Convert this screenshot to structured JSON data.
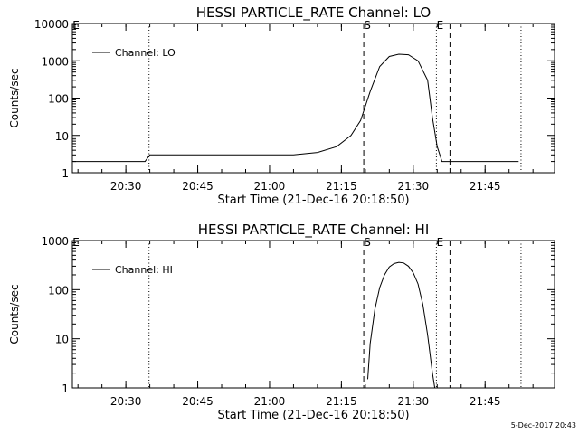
{
  "footer_timestamp": "5-Dec-2017 20:43",
  "chart_data": [
    {
      "type": "line",
      "title": "HESSI PARTICLE_RATE Channel: LO",
      "xlabel": "Start Time (21-Dec-16 20:18:50)",
      "ylabel": "Counts/sec",
      "y_scale": "log",
      "ylim": [
        1,
        10000
      ],
      "y_ticks": [
        "1",
        "10",
        "100",
        "1000",
        "10000"
      ],
      "xlim": [
        "20:18:50",
        "21:59:30"
      ],
      "x_ticks": [
        "20:30",
        "20:45",
        "21:00",
        "21:15",
        "21:30",
        "21:45"
      ],
      "legend": {
        "entries": [
          "Channel: LO"
        ],
        "position": "top-left"
      },
      "markers": [
        {
          "label": "E",
          "time": "20:18:50",
          "style": "dotted"
        },
        {
          "label": "",
          "time": "20:34:50",
          "style": "dotted"
        },
        {
          "label": "S",
          "time": "21:19:40",
          "style": "dashed"
        },
        {
          "label": "E",
          "time": "21:34:50",
          "style": "dotted"
        },
        {
          "label": "",
          "time": "21:37:40",
          "style": "dashed"
        },
        {
          "label": "",
          "time": "21:52:30",
          "style": "dotted"
        }
      ],
      "series": [
        {
          "name": "Channel: LO",
          "x": [
            "20:19",
            "20:25",
            "20:30",
            "20:34",
            "20:35",
            "20:45",
            "20:55",
            "21:05",
            "21:10",
            "21:14",
            "21:17",
            "21:19",
            "21:21",
            "21:23",
            "21:25",
            "21:27",
            "21:29",
            "21:31",
            "21:33",
            "21:34",
            "21:35",
            "21:36",
            "21:40",
            "21:45",
            "21:50",
            "21:52"
          ],
          "y": [
            2,
            2,
            2,
            2,
            3,
            3,
            3,
            3,
            3.5,
            5,
            10,
            25,
            150,
            700,
            1300,
            1500,
            1450,
            1000,
            300,
            30,
            5,
            2,
            2,
            2,
            2,
            2
          ]
        }
      ]
    },
    {
      "type": "line",
      "title": "HESSI PARTICLE_RATE Channel: HI",
      "xlabel": "Start Time (21-Dec-16 20:18:50)",
      "ylabel": "Counts/sec",
      "y_scale": "log",
      "ylim": [
        1,
        1000
      ],
      "y_ticks": [
        "1",
        "10",
        "100",
        "1000"
      ],
      "xlim": [
        "20:18:50",
        "21:59:30"
      ],
      "x_ticks": [
        "20:30",
        "20:45",
        "21:00",
        "21:15",
        "21:30",
        "21:45"
      ],
      "legend": {
        "entries": [
          "Channel: HI"
        ],
        "position": "top-left"
      },
      "markers": [
        {
          "label": "E",
          "time": "20:18:50",
          "style": "dotted"
        },
        {
          "label": "",
          "time": "20:34:50",
          "style": "dotted"
        },
        {
          "label": "S",
          "time": "21:19:40",
          "style": "dashed"
        },
        {
          "label": "E",
          "time": "21:34:50",
          "style": "dotted"
        },
        {
          "label": "",
          "time": "21:37:40",
          "style": "dashed"
        },
        {
          "label": "",
          "time": "21:52:30",
          "style": "dotted"
        }
      ],
      "series": [
        {
          "name": "Channel: HI",
          "x": [
            "21:20:30",
            "21:21",
            "21:22",
            "21:23",
            "21:24",
            "21:25",
            "21:26",
            "21:27",
            "21:28",
            "21:29",
            "21:30",
            "21:31",
            "21:32",
            "21:33",
            "21:34",
            "21:34:30"
          ],
          "y": [
            1.5,
            8,
            40,
            110,
            200,
            290,
            340,
            360,
            350,
            300,
            220,
            130,
            50,
            12,
            2,
            1
          ]
        }
      ]
    }
  ]
}
